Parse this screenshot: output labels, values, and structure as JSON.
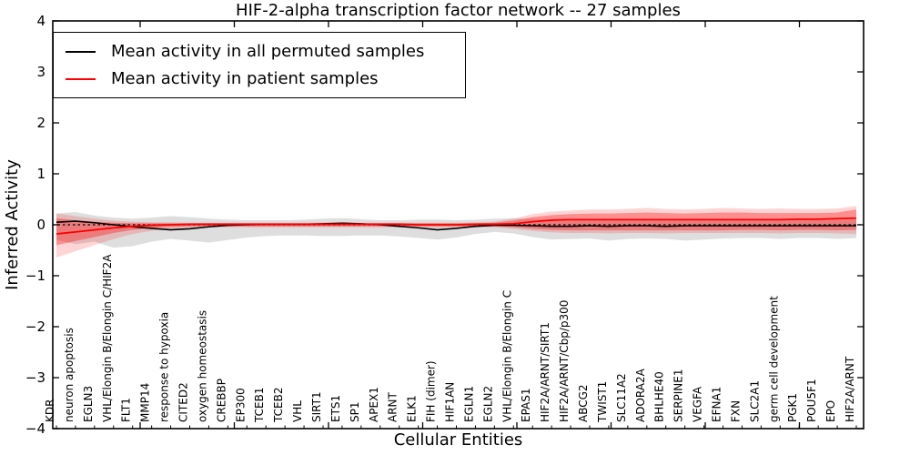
{
  "chart_data": {
    "type": "line",
    "title": "HIF-2-alpha transcription factor network -- 27 samples",
    "xlabel": "Cellular Entities",
    "ylabel": "Inferred Activity",
    "ylim": [
      -4,
      4
    ],
    "grid": false,
    "y_ticks": {
      "values": [
        4,
        3,
        2,
        1,
        0,
        -1,
        -2,
        -3,
        -4
      ],
      "labels": [
        "4",
        "3",
        "2",
        "1",
        "0",
        "−1",
        "−2",
        "−3",
        "−4"
      ]
    },
    "zero_line": {
      "style": "dashed",
      "color": "#000000",
      "y": 0
    },
    "legend": {
      "position": "upper left",
      "entries": [
        {
          "label": "Mean activity in all permuted samples",
          "color": "#000000"
        },
        {
          "label": "Mean activity in patient samples",
          "color": "#ff0000"
        }
      ]
    },
    "categories": [
      "KDR",
      "neuron apoptosis",
      "EGLN3",
      "VHL/Elongin B/Elongin C/HIF2A",
      "FLT1",
      "MMP14",
      "response to hypoxia",
      "CITED2",
      "oxygen homeostasis",
      "CREBBP",
      "EP300",
      "TCEB1",
      "TCEB2",
      "VHL",
      "SIRT1",
      "ETS1",
      "SP1",
      "APEX1",
      "ARNT",
      "ELK1",
      "FIH (dimer)",
      "HIF1AN",
      "EGLN1",
      "EGLN2",
      "VHL/Elongin B/Elongin C",
      "EPAS1",
      "HIF2A/ARNT/SIRT1",
      "HIF2A/ARNT/Cbp/p300",
      "ABCG2",
      "TWIST1",
      "SLC11A2",
      "ADORA2A",
      "BHLHE40",
      "SERPINE1",
      "VEGFA",
      "EFNA1",
      "FXN",
      "SLC2A1",
      "germ cell development",
      "PGK1",
      "POU5F1",
      "EPO",
      "HIF2A/ARNT"
    ],
    "series": [
      {
        "name": "Mean activity in all permuted samples",
        "color": "#000000",
        "values": [
          0.05,
          0.07,
          0.04,
          0.0,
          -0.04,
          -0.07,
          -0.1,
          -0.08,
          -0.04,
          -0.01,
          0.0,
          0.01,
          0.01,
          0.01,
          0.02,
          0.03,
          0.02,
          0.0,
          -0.03,
          -0.06,
          -0.1,
          -0.07,
          -0.03,
          -0.01,
          -0.01,
          -0.02,
          -0.03,
          -0.03,
          -0.02,
          -0.03,
          -0.02,
          -0.02,
          -0.03,
          -0.02,
          -0.02,
          -0.02,
          -0.02,
          -0.02,
          -0.02,
          -0.02,
          -0.02,
          -0.02,
          -0.02
        ],
        "band": {
          "fill": "rgba(0,0,0,0.13)",
          "upper": [
            0.22,
            0.25,
            0.18,
            0.14,
            0.12,
            0.14,
            0.17,
            0.15,
            0.12,
            0.1,
            0.09,
            0.09,
            0.09,
            0.1,
            0.12,
            0.13,
            0.11,
            0.09,
            0.09,
            0.1,
            0.1,
            0.09,
            0.1,
            0.12,
            0.13,
            0.11,
            0.1,
            0.1,
            0.1,
            0.1,
            0.1,
            0.1,
            0.1,
            0.1,
            0.1,
            0.1,
            0.1,
            0.1,
            0.1,
            0.1,
            0.1,
            0.1,
            0.1
          ],
          "lower": [
            -0.3,
            -0.38,
            -0.33,
            -0.45,
            -0.42,
            -0.33,
            -0.28,
            -0.31,
            -0.35,
            -0.3,
            -0.25,
            -0.22,
            -0.21,
            -0.21,
            -0.22,
            -0.22,
            -0.21,
            -0.21,
            -0.23,
            -0.26,
            -0.29,
            -0.25,
            -0.18,
            -0.14,
            -0.17,
            -0.24,
            -0.29,
            -0.28,
            -0.27,
            -0.31,
            -0.28,
            -0.27,
            -0.28,
            -0.31,
            -0.29,
            -0.27,
            -0.26,
            -0.26,
            -0.28,
            -0.26,
            -0.26,
            -0.28,
            -0.26
          ]
        }
      },
      {
        "name": "Mean activity in patient samples",
        "color": "#ff0000",
        "values": [
          -0.18,
          -0.14,
          -0.1,
          -0.06,
          -0.03,
          -0.01,
          0.0,
          0.01,
          0.01,
          0.01,
          0.01,
          0.01,
          0.01,
          0.01,
          0.01,
          0.01,
          0.01,
          0.01,
          0.01,
          0.0,
          0.0,
          0.0,
          0.01,
          0.01,
          0.02,
          0.06,
          0.09,
          0.1,
          0.1,
          0.1,
          0.1,
          0.1,
          0.1,
          0.1,
          0.1,
          0.1,
          0.1,
          0.1,
          0.1,
          0.11,
          0.11,
          0.12,
          0.13
        ],
        "band_outer": {
          "fill": "rgba(255,0,0,0.17)",
          "upper": [
            0.22,
            0.17,
            0.12,
            0.08,
            0.06,
            0.05,
            0.05,
            0.04,
            0.04,
            0.04,
            0.04,
            0.04,
            0.04,
            0.04,
            0.05,
            0.05,
            0.04,
            0.04,
            0.04,
            0.04,
            0.04,
            0.04,
            0.05,
            0.06,
            0.12,
            0.21,
            0.26,
            0.28,
            0.3,
            0.3,
            0.31,
            0.33,
            0.31,
            0.3,
            0.31,
            0.33,
            0.32,
            0.31,
            0.32,
            0.31,
            0.31,
            0.32,
            0.37
          ],
          "lower": [
            -0.64,
            -0.52,
            -0.4,
            -0.28,
            -0.18,
            -0.12,
            -0.08,
            -0.06,
            -0.05,
            -0.05,
            -0.05,
            -0.05,
            -0.05,
            -0.05,
            -0.05,
            -0.05,
            -0.05,
            -0.05,
            -0.05,
            -0.05,
            -0.06,
            -0.05,
            -0.05,
            -0.05,
            -0.08,
            -0.12,
            -0.15,
            -0.16,
            -0.16,
            -0.17,
            -0.16,
            -0.16,
            -0.17,
            -0.16,
            -0.16,
            -0.16,
            -0.16,
            -0.16,
            -0.17,
            -0.16,
            -0.16,
            -0.17,
            -0.18
          ]
        },
        "band_inner": {
          "fill": "rgba(255,0,0,0.33)",
          "upper": [
            0.13,
            0.09,
            0.06,
            0.04,
            0.03,
            0.03,
            0.03,
            0.03,
            0.03,
            0.03,
            0.03,
            0.03,
            0.03,
            0.03,
            0.03,
            0.03,
            0.03,
            0.03,
            0.03,
            0.03,
            0.03,
            0.03,
            0.03,
            0.04,
            0.08,
            0.15,
            0.19,
            0.21,
            0.22,
            0.22,
            0.23,
            0.24,
            0.23,
            0.22,
            0.23,
            0.24,
            0.24,
            0.23,
            0.23,
            0.23,
            0.23,
            0.24,
            0.3
          ],
          "lower": [
            -0.4,
            -0.32,
            -0.24,
            -0.16,
            -0.1,
            -0.06,
            -0.04,
            -0.03,
            -0.03,
            -0.03,
            -0.03,
            -0.03,
            -0.03,
            -0.03,
            -0.03,
            -0.03,
            -0.03,
            -0.03,
            -0.03,
            -0.03,
            -0.03,
            -0.03,
            -0.03,
            -0.03,
            -0.05,
            -0.08,
            -0.1,
            -0.11,
            -0.11,
            -0.11,
            -0.11,
            -0.11,
            -0.11,
            -0.11,
            -0.11,
            -0.11,
            -0.1,
            -0.1,
            -0.11,
            -0.1,
            -0.1,
            -0.11,
            -0.1
          ]
        }
      }
    ]
  }
}
